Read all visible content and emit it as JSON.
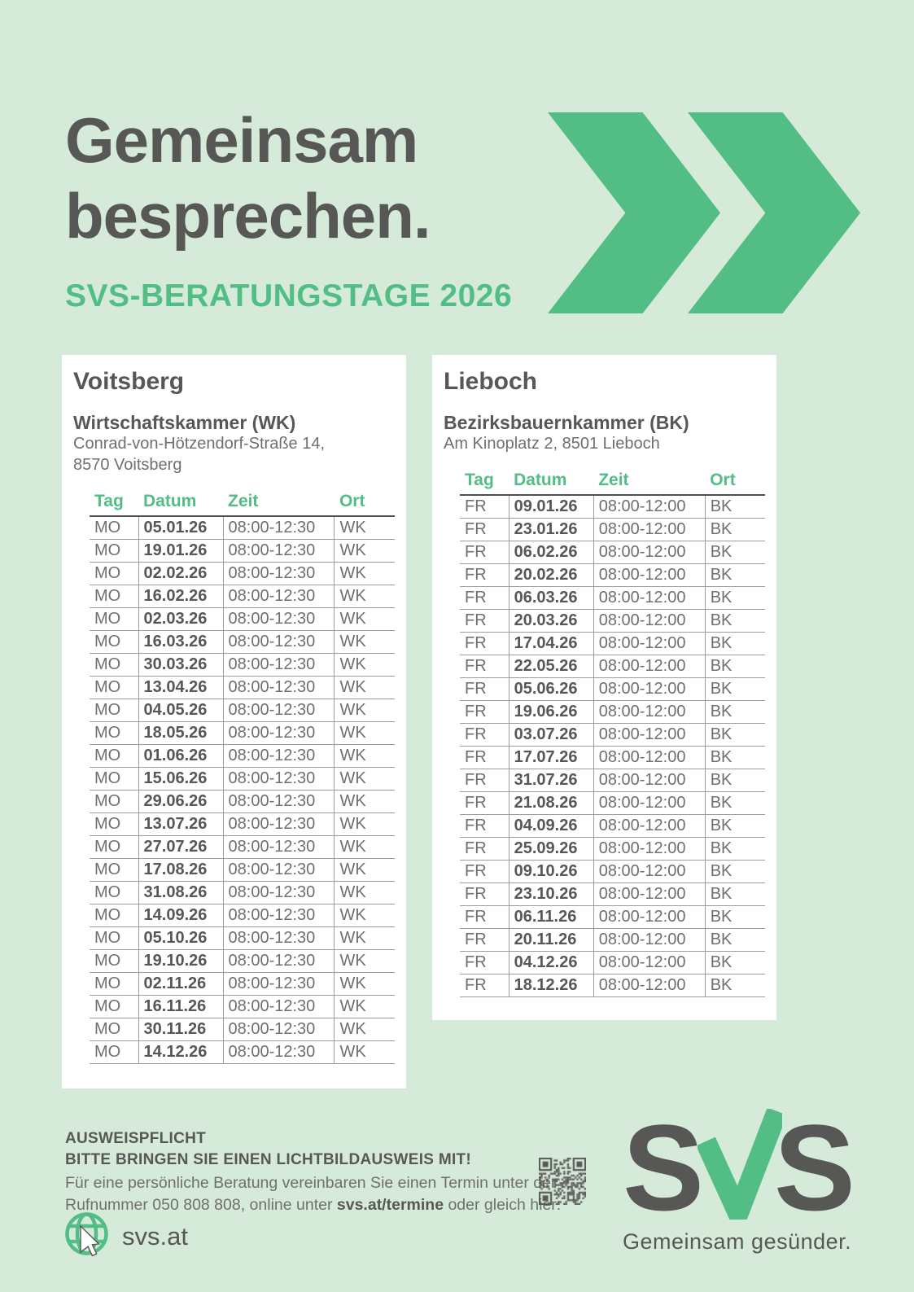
{
  "colors": {
    "background": "#d5ead9",
    "accent_green": "#52bd84",
    "dark_text": "#575756",
    "body_text": "#706f6e",
    "card_background": "#ffffff"
  },
  "hero": {
    "title_line1": "Gemeinsam",
    "title_line2": "besprechen.",
    "subtitle": "SVS-BERATUNGSTAGE 2026",
    "decoration": "double-chevron-right-icon"
  },
  "cards": [
    {
      "city": "Voitsberg",
      "venue": "Wirtschaftskammer (WK)",
      "address_line1": "Conrad-von-Hötzendorf-Straße 14,",
      "address_line2": "8570 Voitsberg",
      "columns": [
        "Tag",
        "Datum",
        "Zeit",
        "Ort"
      ],
      "rows": [
        [
          "MO",
          "05.01.26",
          "08:00-12:30",
          "WK"
        ],
        [
          "MO",
          "19.01.26",
          "08:00-12:30",
          "WK"
        ],
        [
          "MO",
          "02.02.26",
          "08:00-12:30",
          "WK"
        ],
        [
          "MO",
          "16.02.26",
          "08:00-12:30",
          "WK"
        ],
        [
          "MO",
          "02.03.26",
          "08:00-12:30",
          "WK"
        ],
        [
          "MO",
          "16.03.26",
          "08:00-12:30",
          "WK"
        ],
        [
          "MO",
          "30.03.26",
          "08:00-12:30",
          "WK"
        ],
        [
          "MO",
          "13.04.26",
          "08:00-12:30",
          "WK"
        ],
        [
          "MO",
          "04.05.26",
          "08:00-12:30",
          "WK"
        ],
        [
          "MO",
          "18.05.26",
          "08:00-12:30",
          "WK"
        ],
        [
          "MO",
          "01.06.26",
          "08:00-12:30",
          "WK"
        ],
        [
          "MO",
          "15.06.26",
          "08:00-12:30",
          "WK"
        ],
        [
          "MO",
          "29.06.26",
          "08:00-12:30",
          "WK"
        ],
        [
          "MO",
          "13.07.26",
          "08:00-12:30",
          "WK"
        ],
        [
          "MO",
          "27.07.26",
          "08:00-12:30",
          "WK"
        ],
        [
          "MO",
          "17.08.26",
          "08:00-12:30",
          "WK"
        ],
        [
          "MO",
          "31.08.26",
          "08:00-12:30",
          "WK"
        ],
        [
          "MO",
          "14.09.26",
          "08:00-12:30",
          "WK"
        ],
        [
          "MO",
          "05.10.26",
          "08:00-12:30",
          "WK"
        ],
        [
          "MO",
          "19.10.26",
          "08:00-12:30",
          "WK"
        ],
        [
          "MO",
          "02.11.26",
          "08:00-12:30",
          "WK"
        ],
        [
          "MO",
          "16.11.26",
          "08:00-12:30",
          "WK"
        ],
        [
          "MO",
          "30.11.26",
          "08:00-12:30",
          "WK"
        ],
        [
          "MO",
          "14.12.26",
          "08:00-12:30",
          "WK"
        ]
      ]
    },
    {
      "city": "Lieboch",
      "venue": "Bezirksbauernkammer (BK)",
      "address_line1": "Am Kinoplatz 2, 8501 Lieboch",
      "address_line2": "",
      "columns": [
        "Tag",
        "Datum",
        "Zeit",
        "Ort"
      ],
      "rows": [
        [
          "FR",
          "09.01.26",
          "08:00-12:00",
          "BK"
        ],
        [
          "FR",
          "23.01.26",
          "08:00-12:00",
          "BK"
        ],
        [
          "FR",
          "06.02.26",
          "08:00-12:00",
          "BK"
        ],
        [
          "FR",
          "20.02.26",
          "08:00-12:00",
          "BK"
        ],
        [
          "FR",
          "06.03.26",
          "08:00-12:00",
          "BK"
        ],
        [
          "FR",
          "20.03.26",
          "08:00-12:00",
          "BK"
        ],
        [
          "FR",
          "17.04.26",
          "08:00-12:00",
          "BK"
        ],
        [
          "FR",
          "22.05.26",
          "08:00-12:00",
          "BK"
        ],
        [
          "FR",
          "05.06.26",
          "08:00-12:00",
          "BK"
        ],
        [
          "FR",
          "19.06.26",
          "08:00-12:00",
          "BK"
        ],
        [
          "FR",
          "03.07.26",
          "08:00-12:00",
          "BK"
        ],
        [
          "FR",
          "17.07.26",
          "08:00-12:00",
          "BK"
        ],
        [
          "FR",
          "31.07.26",
          "08:00-12:00",
          "BK"
        ],
        [
          "FR",
          "21.08.26",
          "08:00-12:00",
          "BK"
        ],
        [
          "FR",
          "04.09.26",
          "08:00-12:00",
          "BK"
        ],
        [
          "FR",
          "25.09.26",
          "08:00-12:00",
          "BK"
        ],
        [
          "FR",
          "09.10.26",
          "08:00-12:00",
          "BK"
        ],
        [
          "FR",
          "23.10.26",
          "08:00-12:00",
          "BK"
        ],
        [
          "FR",
          "06.11.26",
          "08:00-12:00",
          "BK"
        ],
        [
          "FR",
          "20.11.26",
          "08:00-12:00",
          "BK"
        ],
        [
          "FR",
          "04.12.26",
          "08:00-12:00",
          "BK"
        ],
        [
          "FR",
          "18.12.26",
          "08:00-12:00",
          "BK"
        ]
      ]
    }
  ],
  "footer": {
    "notice_line1": "AUSWEISPFLICHT",
    "notice_line2": "BITTE BRINGEN SIE EINEN LICHTBILDAUSWEIS MIT!",
    "info_line1": "Für eine persönliche Beratung vereinbaren Sie einen Termin unter der",
    "info_line2_prefix": "Rufnummer 050 808 808, online unter ",
    "info_line2_bold": "svs.at/termine",
    "info_line2_suffix": " oder gleich hier:",
    "website": "svs.at",
    "icons": {
      "qr": "qr-code",
      "globe": "globe-cursor-icon",
      "logo_check": "checkmark-icon"
    },
    "logo": {
      "letters": [
        "S",
        "S"
      ],
      "tagline": "Gemeinsam gesünder."
    }
  }
}
